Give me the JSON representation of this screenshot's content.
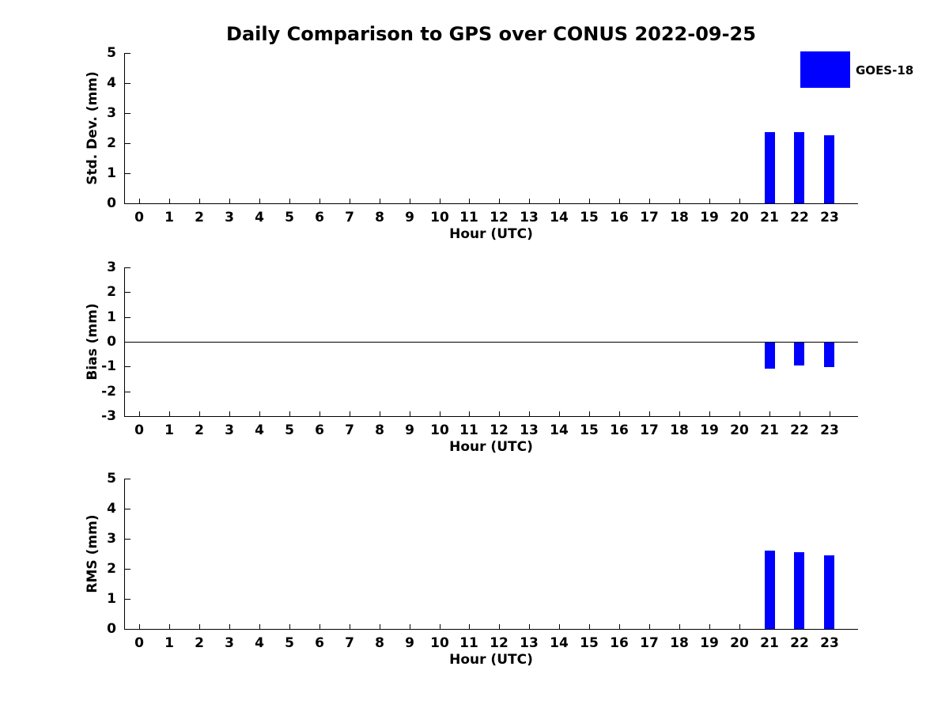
{
  "title": "Daily Comparison to GPS over CONUS 2022-09-25",
  "legend": {
    "label": "GOES-18",
    "color": "#0000ff"
  },
  "colors": {
    "bar": "#0000ff",
    "axis": "#000000",
    "background": "#ffffff"
  },
  "chart_data": [
    {
      "type": "bar",
      "panel": "std-dev",
      "title": "Daily Comparison to GPS over CONUS 2022-09-25",
      "xlabel": "Hour (UTC)",
      "ylabel": "Std. Dev. (mm)",
      "ylim": [
        0,
        5
      ],
      "yticks": [
        0,
        1,
        2,
        3,
        4,
        5
      ],
      "xlim": [
        -0.5,
        23.95
      ],
      "xticks": [
        0,
        1,
        2,
        3,
        4,
        5,
        6,
        7,
        8,
        9,
        10,
        11,
        12,
        13,
        14,
        15,
        16,
        17,
        18,
        19,
        20,
        21,
        22,
        23
      ],
      "zero_line": false,
      "legend_position": "upper right outside",
      "grid": false,
      "series": [
        {
          "name": "GOES-18",
          "color": "#0000ff",
          "x": [
            21,
            22,
            23
          ],
          "values": [
            2.37,
            2.38,
            2.26
          ]
        }
      ]
    },
    {
      "type": "bar",
      "panel": "bias",
      "xlabel": "Hour (UTC)",
      "ylabel": "Bias (mm)",
      "ylim": [
        -3,
        3
      ],
      "yticks": [
        3,
        2,
        1,
        0,
        -1,
        -2,
        -3
      ],
      "xlim": [
        -0.5,
        23.95
      ],
      "xticks": [
        0,
        1,
        2,
        3,
        4,
        5,
        6,
        7,
        8,
        9,
        10,
        11,
        12,
        13,
        14,
        15,
        16,
        17,
        18,
        19,
        20,
        21,
        22,
        23
      ],
      "zero_line": true,
      "grid": false,
      "series": [
        {
          "name": "GOES-18",
          "color": "#0000ff",
          "x": [
            21,
            22,
            23
          ],
          "values": [
            -1.05,
            -0.92,
            -1.0
          ]
        }
      ]
    },
    {
      "type": "bar",
      "panel": "rms",
      "xlabel": "Hour (UTC)",
      "ylabel": "RMS (mm)",
      "ylim": [
        0,
        5
      ],
      "yticks": [
        0,
        1,
        2,
        3,
        4,
        5
      ],
      "xlim": [
        -0.5,
        23.95
      ],
      "xticks": [
        0,
        1,
        2,
        3,
        4,
        5,
        6,
        7,
        8,
        9,
        10,
        11,
        12,
        13,
        14,
        15,
        16,
        17,
        18,
        19,
        20,
        21,
        22,
        23
      ],
      "zero_line": false,
      "grid": false,
      "series": [
        {
          "name": "GOES-18",
          "color": "#0000ff",
          "x": [
            21,
            22,
            23
          ],
          "values": [
            2.6,
            2.55,
            2.45
          ]
        }
      ]
    }
  ]
}
